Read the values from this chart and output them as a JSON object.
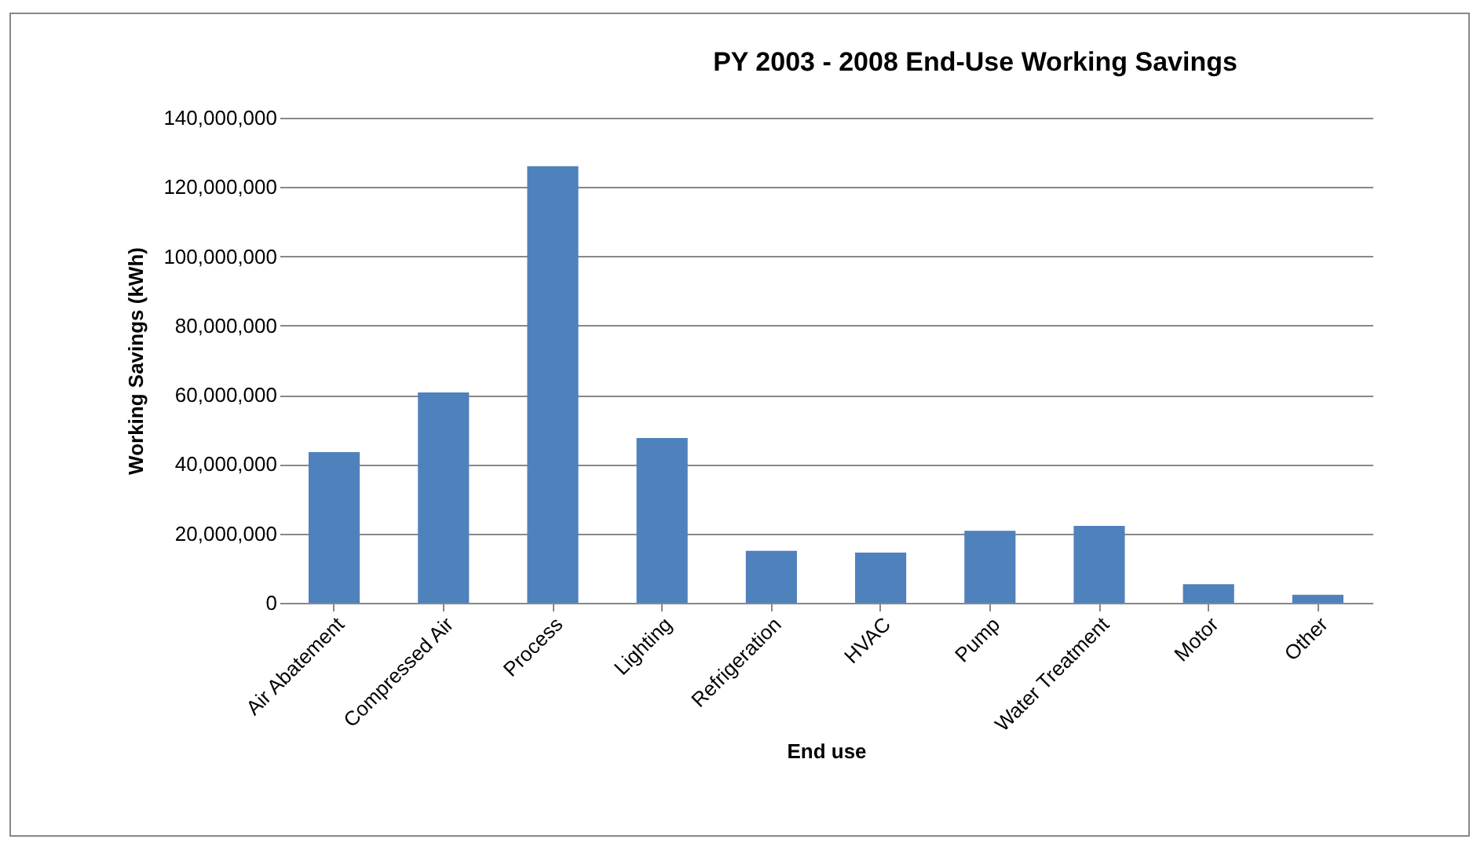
{
  "chart_data": {
    "type": "bar",
    "title": "PY 2003 - 2008 End-Use Working Savings",
    "xlabel": "End use",
    "ylabel": "Working Savings  (kWh)",
    "categories": [
      "Air Abatement",
      "Compressed Air",
      "Process",
      "Lighting",
      "Refrigeration",
      "HVAC",
      "Pump",
      "Water Treatment",
      "Motor",
      "Other"
    ],
    "values": [
      43500000,
      60700000,
      126000000,
      47600000,
      15000000,
      14500000,
      20800000,
      22200000,
      5400000,
      2300000
    ],
    "color": "#4f81bd",
    "ylim": [
      0,
      140000000
    ],
    "yticks": [
      {
        "value": 0,
        "label": "0"
      },
      {
        "value": 20000000,
        "label": "20,000,000"
      },
      {
        "value": 40000000,
        "label": "40,000,000"
      },
      {
        "value": 60000000,
        "label": "60,000,000"
      },
      {
        "value": 80000000,
        "label": "80,000,000"
      },
      {
        "value": 100000000,
        "label": "100,000,000"
      },
      {
        "value": 120000000,
        "label": "120,000,000"
      },
      {
        "value": 140000000,
        "label": "140,000,000"
      }
    ],
    "grid": "y"
  }
}
